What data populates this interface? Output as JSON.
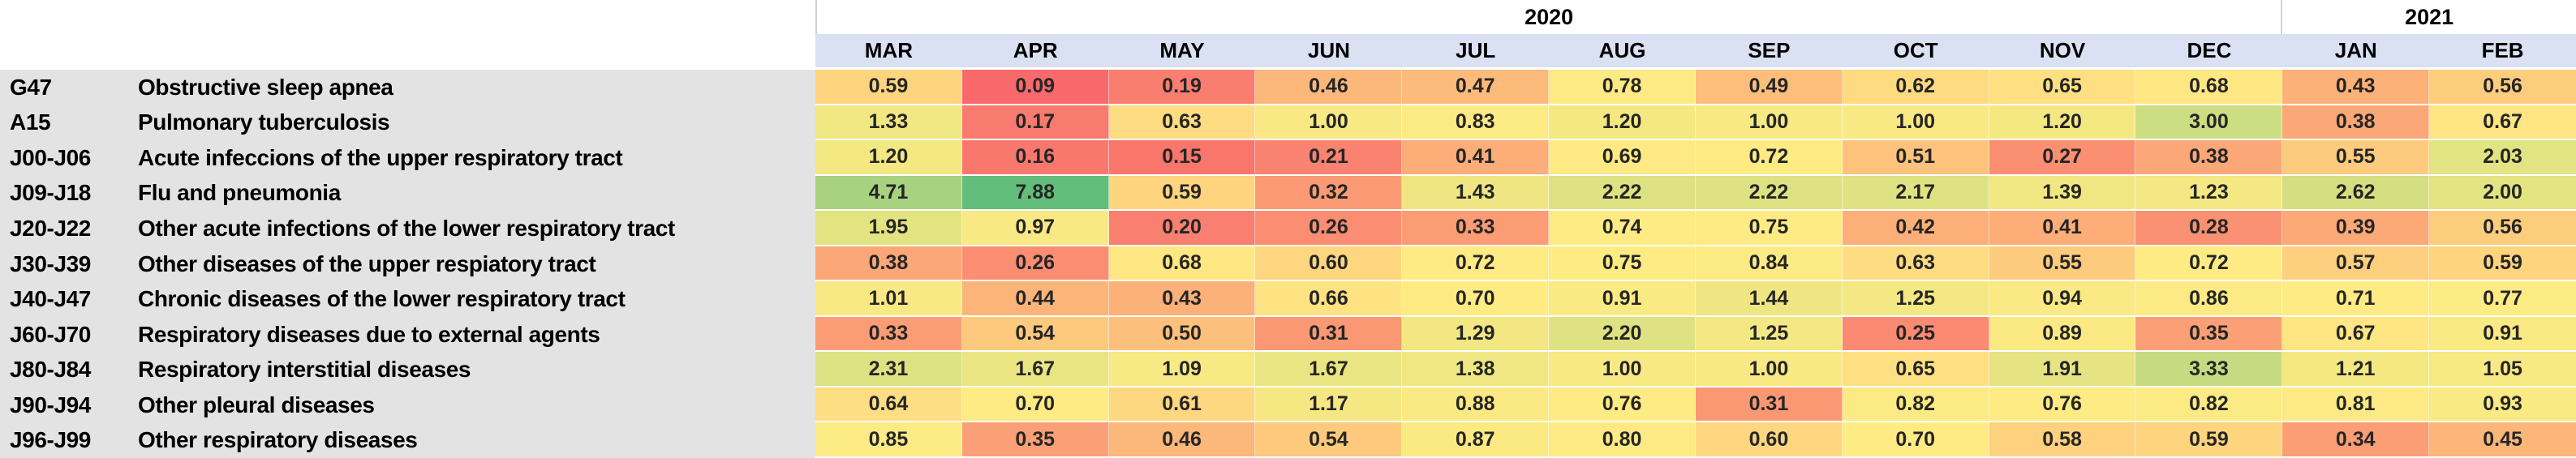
{
  "chart_data": {
    "type": "heatmap",
    "title": "",
    "legend_position": "none",
    "grid": false,
    "year_headers": [
      {
        "label": "2020",
        "span": 10
      },
      {
        "label": "2021",
        "span": 2
      }
    ],
    "months": [
      "MAR",
      "APR",
      "MAY",
      "JUN",
      "JUL",
      "AUG",
      "SEP",
      "OCT",
      "NOV",
      "DEC",
      "JAN",
      "FEB"
    ],
    "rows": [
      {
        "code": "G47",
        "label": "Obstructive sleep apnea",
        "values": [
          0.59,
          0.09,
          0.19,
          0.46,
          0.47,
          0.78,
          0.49,
          0.62,
          0.65,
          0.68,
          0.43,
          0.56
        ]
      },
      {
        "code": "A15",
        "label": "Pulmonary tuberculosis",
        "values": [
          1.33,
          0.17,
          0.63,
          1.0,
          0.83,
          1.2,
          1.0,
          1.0,
          1.2,
          3.0,
          0.38,
          0.67
        ]
      },
      {
        "code": "J00-J06",
        "label": "Acute infeccions of the upper respiratory tract",
        "values": [
          1.2,
          0.16,
          0.15,
          0.21,
          0.41,
          0.69,
          0.72,
          0.51,
          0.27,
          0.38,
          0.55,
          2.03
        ]
      },
      {
        "code": "J09-J18",
        "label": "Flu and pneumonia",
        "values": [
          4.71,
          7.88,
          0.59,
          0.32,
          1.43,
          2.22,
          2.22,
          2.17,
          1.39,
          1.23,
          2.62,
          2.0
        ]
      },
      {
        "code": "J20-J22",
        "label": "Other acute infections of the lower respiratory tract",
        "values": [
          1.95,
          0.97,
          0.2,
          0.26,
          0.33,
          0.74,
          0.75,
          0.42,
          0.41,
          0.28,
          0.39,
          0.56
        ]
      },
      {
        "code": "J30-J39",
        "label": "Other diseases of the upper respiatory tract",
        "values": [
          0.38,
          0.26,
          0.68,
          0.6,
          0.72,
          0.75,
          0.84,
          0.63,
          0.55,
          0.72,
          0.57,
          0.59
        ]
      },
      {
        "code": "J40-J47",
        "label": "Chronic diseases of the lower respiratory tract",
        "values": [
          1.01,
          0.44,
          0.43,
          0.66,
          0.7,
          0.91,
          1.44,
          1.25,
          0.94,
          0.86,
          0.71,
          0.77
        ]
      },
      {
        "code": "J60-J70",
        "label": "Respiratory diseases due to external agents",
        "values": [
          0.33,
          0.54,
          0.5,
          0.31,
          1.29,
          2.2,
          1.25,
          0.25,
          0.89,
          0.35,
          0.67,
          0.91
        ]
      },
      {
        "code": "J80-J84",
        "label": "Respiratory interstitial diseases",
        "values": [
          2.31,
          1.67,
          1.09,
          1.67,
          1.38,
          1.0,
          1.0,
          0.65,
          1.91,
          3.33,
          1.21,
          1.05
        ]
      },
      {
        "code": "J90-J94",
        "label": "Other pleural diseases",
        "values": [
          0.64,
          0.7,
          0.61,
          1.17,
          0.88,
          0.76,
          0.31,
          0.82,
          0.76,
          0.82,
          0.81,
          0.93
        ]
      },
      {
        "code": "J96-J99",
        "label": "Other respiratory diseases",
        "values": [
          0.85,
          0.35,
          0.46,
          0.54,
          0.87,
          0.8,
          0.6,
          0.7,
          0.58,
          0.59,
          0.34,
          0.45
        ]
      }
    ],
    "colorscale": {
      "min_color": "#F8696B",
      "mid_color": "#FFEB84",
      "max_color": "#63BE7B",
      "midpoint": "50th percentile"
    }
  },
  "styles": {
    "month_band_bg": "#D9E1F2",
    "row_label_bg": "#E3E3E3",
    "year_divider": "#D2D2D2",
    "value_text": "#262626"
  }
}
